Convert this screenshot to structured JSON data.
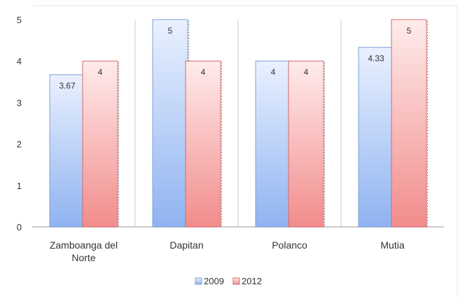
{
  "chart_data": {
    "type": "bar",
    "categories": [
      "Zamboanga del Norte",
      "Dapitan",
      "Polanco",
      "Mutia"
    ],
    "category_lines": [
      [
        "Zamboanga del",
        "Norte"
      ],
      [
        "Dapitan"
      ],
      [
        "Polanco"
      ],
      [
        "Mutia"
      ]
    ],
    "series": [
      {
        "name": "2009",
        "values": [
          3.67,
          5,
          4,
          4.33
        ],
        "labels": [
          "3.67",
          "5",
          "4",
          "4.33"
        ],
        "color_top": "#eaf1ff",
        "color_bottom": "#8fb3f0",
        "stroke": "#7f9fd6"
      },
      {
        "name": "2012",
        "values": [
          4,
          4,
          4,
          5
        ],
        "labels": [
          "4",
          "4",
          "4",
          "5"
        ],
        "color_top": "#ffecec",
        "color_bottom": "#f28c8c",
        "stroke": "#d46a6a"
      }
    ],
    "ylim": [
      0,
      5
    ],
    "yticks": [
      "0",
      "1",
      "2",
      "3",
      "4",
      "5"
    ],
    "grid": "vertical separators",
    "legend": "bottom-center",
    "title": "",
    "xlabel": "",
    "ylabel": ""
  }
}
